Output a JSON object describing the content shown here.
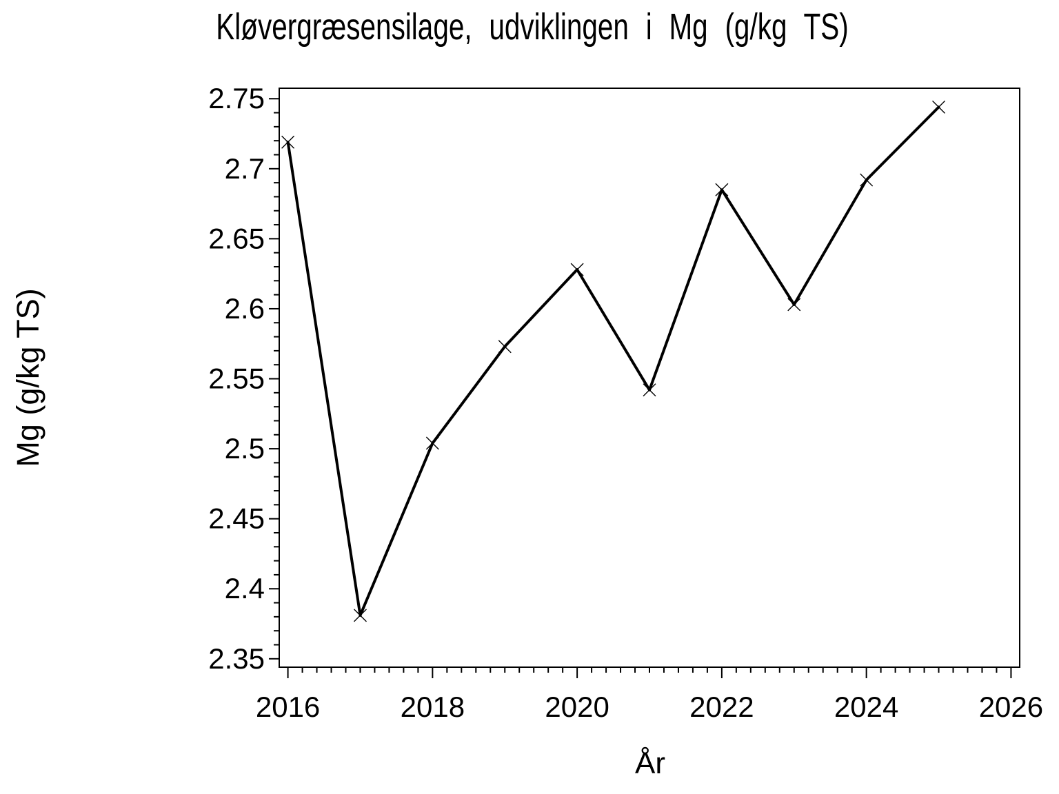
{
  "chart_data": {
    "type": "line",
    "title": "Kløvergræsensilage, udviklingen i Mg (g/kg TS)",
    "grid": false,
    "legend": false,
    "colors": {
      "foreground": "#000000",
      "background": "#ffffff"
    },
    "x_axis": {
      "label": "År",
      "lim": [
        2015.88,
        2026.12
      ],
      "minor_step": 0.2,
      "major_ticks": [
        {
          "value": 2016,
          "label": "2016"
        },
        {
          "value": 2018,
          "label": "2018"
        },
        {
          "value": 2020,
          "label": "2020"
        },
        {
          "value": 2022,
          "label": "2022"
        },
        {
          "value": 2024,
          "label": "2024"
        },
        {
          "value": 2026,
          "label": "2026"
        }
      ]
    },
    "y_axis": {
      "label": "Mg (g/kg TS)",
      "lim": [
        2.344,
        2.7575
      ],
      "minor_step": 0.01,
      "major_ticks": [
        {
          "value": 2.75,
          "label": "2.75"
        },
        {
          "value": 2.7,
          "label": "2.7"
        },
        {
          "value": 2.65,
          "label": "2.65"
        },
        {
          "value": 2.6,
          "label": "2.6"
        },
        {
          "value": 2.55,
          "label": "2.55"
        },
        {
          "value": 2.5,
          "label": "2.5"
        },
        {
          "value": 2.45,
          "label": "2.45"
        },
        {
          "value": 2.4,
          "label": "2.4"
        },
        {
          "value": 2.35,
          "label": "2.35"
        }
      ]
    },
    "series": [
      {
        "name": "Mg (g/kg TS)",
        "marker": "x",
        "color": "#000000",
        "points": [
          {
            "year": 2016,
            "value": 2.719
          },
          {
            "year": 2017,
            "value": 2.381
          },
          {
            "year": 2018,
            "value": 2.504
          },
          {
            "year": 2019,
            "value": 2.573
          },
          {
            "year": 2020,
            "value": 2.628
          },
          {
            "year": 2021,
            "value": 2.542
          },
          {
            "year": 2022,
            "value": 2.685
          },
          {
            "year": 2023,
            "value": 2.603
          },
          {
            "year": 2024,
            "value": 2.692
          },
          {
            "year": 2025,
            "value": 2.744
          }
        ]
      }
    ]
  }
}
